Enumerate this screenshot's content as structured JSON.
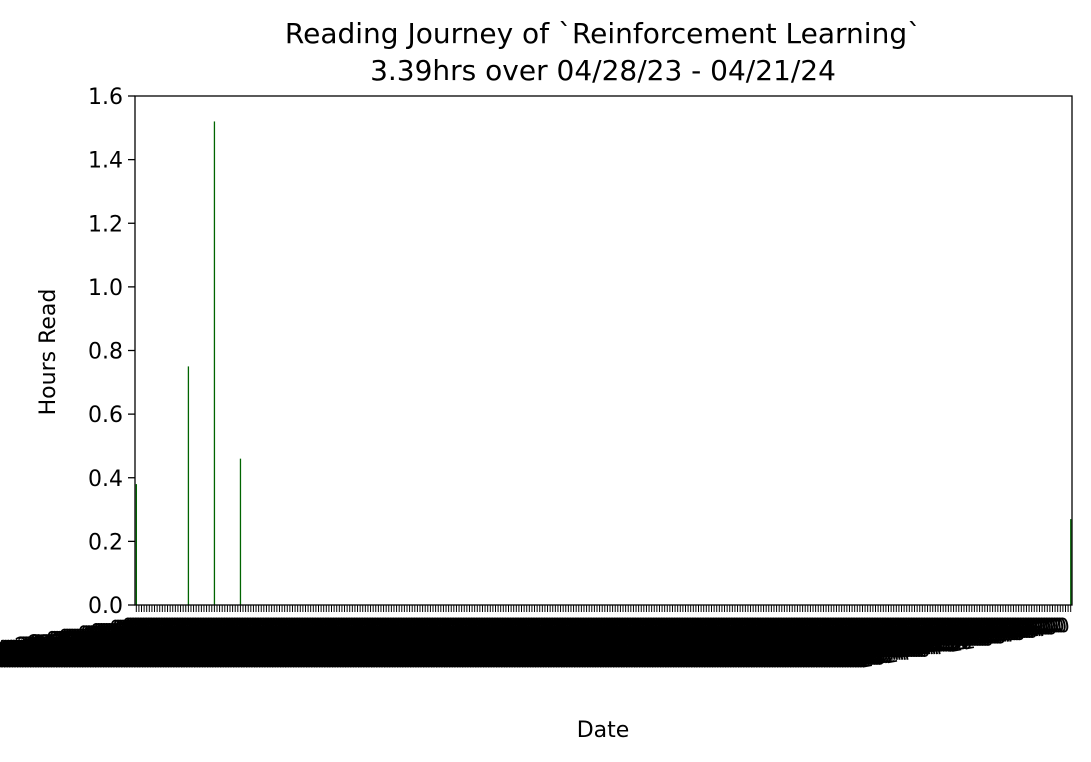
{
  "chart_data": {
    "type": "bar",
    "title": "Reading Journey of `Reinforcement Learning`",
    "subtitle": "3.39hrs over 04/28/23 - 04/21/24",
    "xlabel": "Date",
    "ylabel": "Hours Read",
    "x_start": "2023-04-28",
    "x_end": "2024-04-21",
    "ylim": [
      0,
      1.6
    ],
    "yticks": [
      "0.0",
      "0.2",
      "0.4",
      "0.6",
      "0.8",
      "1.0",
      "1.2",
      "1.4",
      "1.6"
    ],
    "bar_color": "#006400",
    "grid": false,
    "legend": "none",
    "nonzero_values": [
      {
        "date": "2023-04-28",
        "hours": 0.38
      },
      {
        "date": "2023-05-18",
        "hours": 0.75
      },
      {
        "date": "2023-05-28",
        "hours": 1.52
      },
      {
        "date": "2023-06-07",
        "hours": 0.46
      },
      {
        "date": "2024-04-21",
        "hours": 0.27
      }
    ]
  }
}
